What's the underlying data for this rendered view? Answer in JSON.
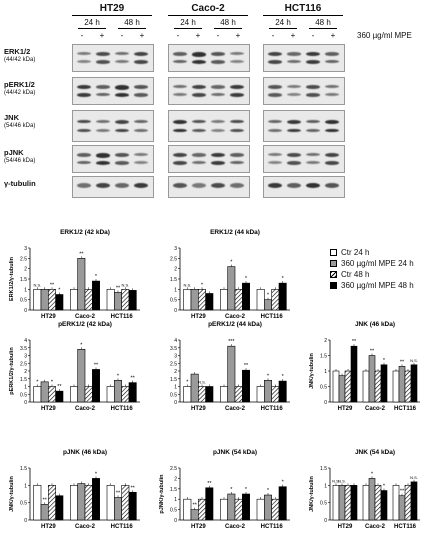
{
  "western_blot": {
    "cell_lines": [
      "HT29",
      "Caco-2",
      "HCT116"
    ],
    "time_labels": [
      "24 h",
      "48 h"
    ],
    "treatment_signs": [
      "-",
      "+"
    ],
    "treatment_label": "360 µg/ml MPE",
    "proteins": [
      {
        "name": "ERK1/2",
        "kda": "(44/42 kDa)"
      },
      {
        "name": "pERK1/2",
        "kda": "(44/42 kDa)"
      },
      {
        "name": "JNK",
        "kda": "(54/46 kDa)"
      },
      {
        "name": "pJNK",
        "kda": "(54/46 kDa)"
      },
      {
        "name": "γ-tubulin",
        "kda": ""
      }
    ]
  },
  "legend": [
    {
      "label": "Ctr 24 h",
      "fill": "white"
    },
    {
      "label": "360 µg/ml MPE 24 h",
      "fill": "gray"
    },
    {
      "label": "Ctr 48 h",
      "fill": "hatch"
    },
    {
      "label": "360 µg/ml MPE 48 h",
      "fill": "black"
    }
  ],
  "colors": {
    "gray": "#9a9a9a",
    "black": "#000000",
    "white": "#ffffff"
  },
  "chart_data": [
    {
      "type": "bar",
      "title": "ERK1/2 (42 kDa)",
      "ylabel": "ERK1/2/γ-tubulin",
      "categories": [
        "HT29",
        "Caco-2",
        "HCT116"
      ],
      "ylim": [
        0,
        3
      ],
      "yticks": [
        "0",
        "0.5",
        "1",
        "1.5",
        "2",
        "2.5",
        "3"
      ],
      "series": [
        {
          "values": [
            1,
            1,
            1
          ]
        },
        {
          "values": [
            1,
            2.5,
            0.85
          ]
        },
        {
          "values": [
            1,
            1,
            1
          ]
        },
        {
          "values": [
            0.75,
            1.4,
            0.95
          ]
        }
      ],
      "annotations": [
        [
          "N.S.",
          "",
          "**",
          "*"
        ],
        [
          "",
          "**",
          "",
          "*"
        ],
        [
          "",
          "**",
          "N.S.",
          ""
        ]
      ]
    },
    {
      "type": "bar",
      "title": "ERK1/2 (44 kDa)",
      "ylabel": "",
      "categories": [
        "HT29",
        "Caco-2",
        "HCT116"
      ],
      "ylim": [
        0,
        3
      ],
      "yticks": [
        "0",
        "0.5",
        "1",
        "1.5",
        "2",
        "2.5",
        "3"
      ],
      "series": [
        {
          "values": [
            1,
            1,
            1
          ]
        },
        {
          "values": [
            1,
            2.1,
            0.5
          ]
        },
        {
          "values": [
            1,
            1,
            1
          ]
        },
        {
          "values": [
            0.8,
            1.3,
            1.3
          ]
        }
      ],
      "annotations": [
        [
          "N.S.",
          "",
          "*",
          ""
        ],
        [
          "",
          "*",
          "",
          "*"
        ],
        [
          "",
          "*",
          "",
          "*"
        ]
      ]
    },
    {
      "type": "bar",
      "title": "pERK1/2 (42 kDa)",
      "ylabel": "pERK1/2/γ-tubulin",
      "categories": [
        "HT29",
        "Caco-2",
        "HCT116"
      ],
      "ylim": [
        0,
        4
      ],
      "yticks": [
        "0",
        "0.5",
        "1",
        "1.5",
        "2",
        "2.5",
        "3",
        "3.5",
        "4"
      ],
      "series": [
        {
          "values": [
            1,
            1,
            1
          ]
        },
        {
          "values": [
            1.3,
            3.4,
            1.4
          ]
        },
        {
          "values": [
            1,
            1,
            1
          ]
        },
        {
          "values": [
            0.7,
            2.1,
            1.25
          ]
        }
      ],
      "annotations": [
        [
          "*",
          "",
          "*",
          "**"
        ],
        [
          "",
          "*",
          "",
          "**"
        ],
        [
          "",
          "*",
          "",
          "**"
        ]
      ]
    },
    {
      "type": "bar",
      "title": "pERK1/2 (44 kDa)",
      "ylabel": "",
      "categories": [
        "HT29",
        "Caco-2",
        "HCT116"
      ],
      "ylim": [
        0,
        4
      ],
      "yticks": [
        "0",
        "0.5",
        "1",
        "1.5",
        "2",
        "2.5",
        "3",
        "3.5",
        "4"
      ],
      "series": [
        {
          "values": [
            1,
            1,
            1
          ]
        },
        {
          "values": [
            1.8,
            3.6,
            1.4
          ]
        },
        {
          "values": [
            1,
            1,
            1
          ]
        },
        {
          "values": [
            1,
            2.05,
            1.35
          ]
        }
      ],
      "annotations": [
        [
          "*",
          "",
          "N.S.",
          ""
        ],
        [
          "",
          "***",
          "",
          "**"
        ],
        [
          "",
          "*",
          "",
          "*"
        ]
      ]
    },
    {
      "type": "bar",
      "title": "JNK (46 kDa)",
      "ylabel": "JNK/γ-tubulin",
      "categories": [
        "HT29",
        "Caco-2",
        "HCT116"
      ],
      "ylim": [
        0,
        2
      ],
      "yticks": [
        "0",
        "0.5",
        "1",
        "1.5",
        "2"
      ],
      "series": [
        {
          "values": [
            1,
            1,
            1
          ]
        },
        {
          "values": [
            0.85,
            1.5,
            1.15
          ]
        },
        {
          "values": [
            1,
            1,
            1
          ]
        },
        {
          "values": [
            1.8,
            1.2,
            1.2
          ]
        }
      ],
      "annotations": [
        [
          "",
          "",
          "",
          "**"
        ],
        [
          "",
          "**",
          "",
          "*"
        ],
        [
          "",
          "**",
          "",
          "N.S."
        ]
      ]
    },
    {
      "type": "bar",
      "title": "pJNK (46 kDa)",
      "ylabel": "JNK/γ-tubulin",
      "categories": [
        "HT29",
        "Caco-2",
        "HCT116"
      ],
      "ylim": [
        0,
        1.5
      ],
      "yticks": [
        "0",
        "0.5",
        "1",
        "1.5"
      ],
      "series": [
        {
          "values": [
            1,
            1,
            1
          ]
        },
        {
          "values": [
            0.45,
            1.05,
            0.65
          ]
        },
        {
          "values": [
            1,
            1,
            1
          ]
        },
        {
          "values": [
            0.7,
            1.2,
            0.8
          ]
        }
      ],
      "annotations": [
        [
          "",
          "**",
          "",
          ""
        ],
        [
          "",
          "",
          "",
          "*"
        ],
        [
          "",
          "**",
          "",
          "**"
        ]
      ]
    },
    {
      "type": "bar",
      "title": "pJNK (54 kDa)",
      "ylabel": "pJNK/γ-tubulin",
      "categories": [
        "HT29",
        "Caco-2",
        "HCT116"
      ],
      "ylim": [
        0,
        2.5
      ],
      "yticks": [
        "0",
        "0.5",
        "1",
        "1.5",
        "2",
        "2.5"
      ],
      "series": [
        {
          "values": [
            1,
            1,
            1
          ]
        },
        {
          "values": [
            0.5,
            1.25,
            1.2
          ]
        },
        {
          "values": [
            1,
            1,
            1
          ]
        },
        {
          "values": [
            1.55,
            1.25,
            1.6
          ]
        }
      ],
      "annotations": [
        [
          "",
          "**",
          "",
          "**"
        ],
        [
          "",
          "*",
          "",
          "*"
        ],
        [
          "",
          "*",
          "",
          "*"
        ]
      ]
    },
    {
      "type": "bar",
      "title": "JNK (54 kDa)",
      "ylabel": "JNK/γ-tubulin",
      "categories": [
        "HT29",
        "Caco-2",
        "HCT116"
      ],
      "ylim": [
        0,
        1.5
      ],
      "yticks": [
        "0",
        "0.5",
        "1",
        "1.5"
      ],
      "series": [
        {
          "values": [
            1,
            1,
            1
          ]
        },
        {
          "values": [
            1,
            1.2,
            0.7
          ]
        },
        {
          "values": [
            1,
            1,
            1
          ]
        },
        {
          "values": [
            1,
            0.85,
            1.1
          ]
        }
      ],
      "annotations": [
        [
          "N.S.",
          "N.S.",
          "",
          ""
        ],
        [
          "",
          "*",
          "",
          "*"
        ],
        [
          "",
          "**",
          "",
          "N.S."
        ]
      ]
    }
  ]
}
